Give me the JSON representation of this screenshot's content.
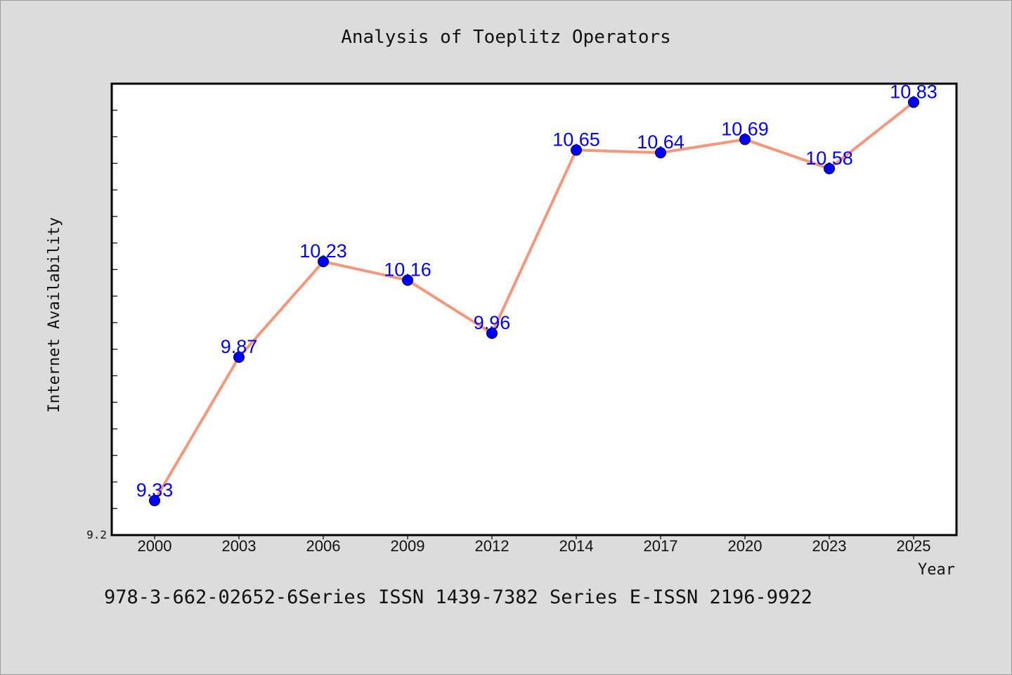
{
  "chart_data": {
    "type": "line",
    "title": "Analysis of Toeplitz Operators",
    "xlabel": "Year",
    "ylabel": "Internet Availability",
    "categories": [
      "2000",
      "2003",
      "2006",
      "2009",
      "2012",
      "2014",
      "2017",
      "2020",
      "2023",
      "2025"
    ],
    "series": [
      {
        "values": [
          9.33,
          9.87,
          10.23,
          10.16,
          9.96,
          10.65,
          10.64,
          10.69,
          10.58,
          10.83
        ],
        "value_labels": [
          "9.33",
          "9.87",
          "10.23",
          "10.16",
          "9.96",
          "10.65",
          "10.64",
          "10.69",
          "10.58",
          "10.83"
        ]
      }
    ],
    "ylim": [
      9.2,
      10.9
    ],
    "ytick_labels": [
      "9.2"
    ],
    "grid": false,
    "line_color": "#f4977a",
    "marker_color": "#0000ff",
    "label_color": "#0000ff"
  },
  "footer": {
    "text": "978-3-662-02652-6Series ISSN 1439-7382 Series E-ISSN 2196-9922"
  }
}
